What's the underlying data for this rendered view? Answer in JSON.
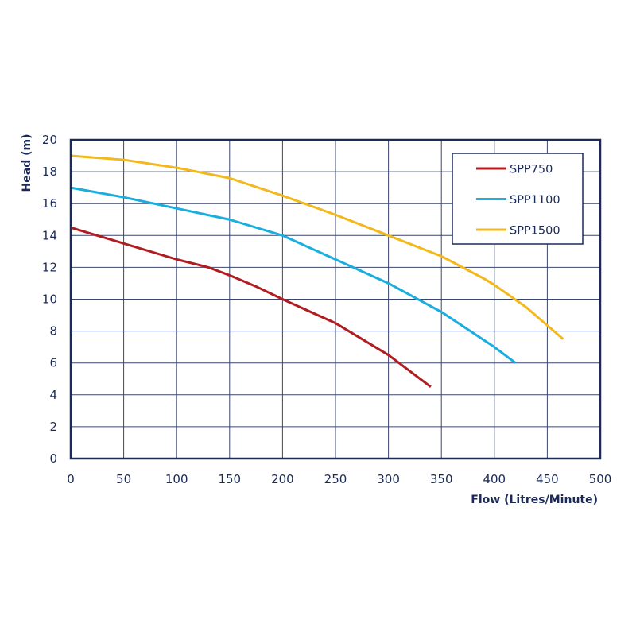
{
  "chart_data": {
    "type": "line",
    "title": "",
    "xlabel": "Flow (Litres/Minute)",
    "ylabel": "Head (m)",
    "xlim": [
      0,
      500
    ],
    "ylim": [
      0,
      20
    ],
    "xticks": [
      0,
      50,
      100,
      150,
      200,
      250,
      300,
      350,
      400,
      450,
      500
    ],
    "yticks": [
      0,
      2,
      4,
      6,
      8,
      10,
      12,
      14,
      16,
      18,
      20
    ],
    "grid": true,
    "legend_position": "top-right",
    "series": [
      {
        "name": "SPP750",
        "color": "#b01c1f",
        "x": [
          0,
          50,
          100,
          130,
          150,
          175,
          200,
          250,
          300,
          340
        ],
        "y": [
          14.5,
          13.5,
          12.5,
          12.0,
          11.5,
          10.8,
          10.0,
          8.5,
          6.5,
          4.5
        ]
      },
      {
        "name": "SPP1100",
        "color": "#1aaedf",
        "x": [
          0,
          50,
          100,
          150,
          200,
          250,
          300,
          350,
          400,
          420
        ],
        "y": [
          17.0,
          16.4,
          15.7,
          15.0,
          14.0,
          12.5,
          11.0,
          9.2,
          7.0,
          6.0
        ]
      },
      {
        "name": "SPP1500",
        "color": "#f2b81c",
        "x": [
          0,
          50,
          100,
          150,
          200,
          250,
          300,
          350,
          390,
          400,
          430,
          465
        ],
        "y": [
          19.0,
          18.75,
          18.25,
          17.6,
          16.5,
          15.3,
          14.0,
          12.7,
          11.3,
          10.9,
          9.5,
          7.5
        ]
      }
    ]
  }
}
